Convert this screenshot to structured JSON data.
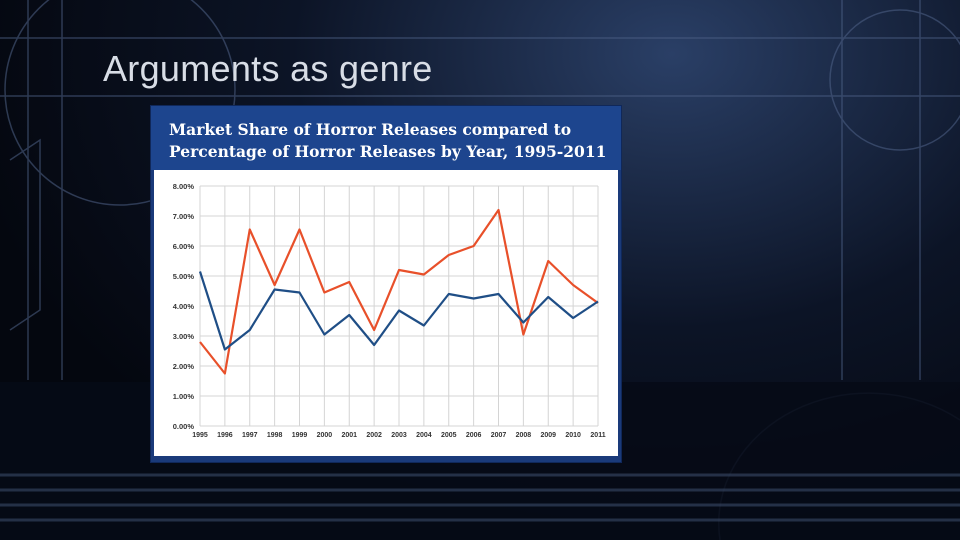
{
  "slide": {
    "title": "Arguments as genre"
  },
  "chart_data": {
    "type": "line",
    "title_lines": [
      "Market Share of Horror Releases compared to",
      "Percentage of Horror Releases by Year, 1995-2011"
    ],
    "xlabel": "",
    "ylabel": "",
    "x": [
      "1995",
      "1996",
      "1997",
      "1998",
      "1999",
      "2000",
      "2001",
      "2002",
      "2003",
      "2004",
      "2005",
      "2006",
      "2007",
      "2008",
      "2009",
      "2010",
      "2011"
    ],
    "y_ticks": [
      "0.00%",
      "1.00%",
      "2.00%",
      "3.00%",
      "4.00%",
      "5.00%",
      "6.00%",
      "7.00%",
      "8.00%"
    ],
    "ylim": [
      0,
      8
    ],
    "grid": true,
    "series": [
      {
        "color": "#e8502a",
        "values": [
          2.8,
          1.75,
          6.55,
          4.7,
          6.55,
          4.45,
          4.8,
          3.2,
          5.2,
          5.05,
          5.7,
          6.0,
          7.2,
          3.05,
          5.5,
          4.7,
          4.1
        ]
      },
      {
        "color": "#1f4e86",
        "values": [
          5.15,
          2.55,
          3.2,
          4.55,
          4.45,
          3.05,
          3.7,
          2.7,
          3.85,
          3.35,
          4.4,
          4.25,
          4.4,
          3.45,
          4.3,
          3.6,
          4.15
        ]
      }
    ]
  }
}
